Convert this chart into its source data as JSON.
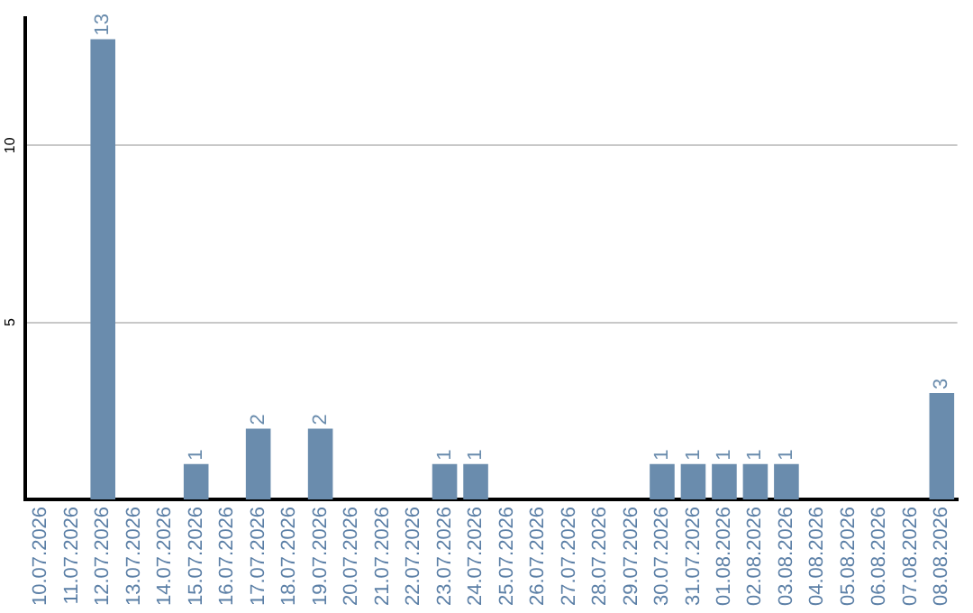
{
  "chart_data": {
    "type": "bar",
    "categories": [
      "10.07.2026",
      "11.07.2026",
      "12.07.2026",
      "13.07.2026",
      "14.07.2026",
      "15.07.2026",
      "16.07.2026",
      "17.07.2026",
      "18.07.2026",
      "19.07.2026",
      "20.07.2026",
      "21.07.2026",
      "22.07.2026",
      "23.07.2026",
      "24.07.2026",
      "25.07.2026",
      "26.07.2026",
      "27.07.2026",
      "28.07.2026",
      "29.07.2026",
      "30.07.2026",
      "31.07.2026",
      "01.08.2026",
      "02.08.2026",
      "03.08.2026",
      "04.08.2026",
      "05.08.2026",
      "06.08.2026",
      "07.08.2026",
      "08.08.2026"
    ],
    "values": [
      0,
      0,
      13,
      0,
      0,
      1,
      0,
      2,
      0,
      2,
      0,
      0,
      0,
      1,
      1,
      0,
      0,
      0,
      0,
      0,
      1,
      1,
      1,
      1,
      1,
      0,
      0,
      0,
      0,
      3
    ],
    "value_labels": [
      null,
      null,
      "13",
      null,
      null,
      "1",
      null,
      "2",
      null,
      "2",
      null,
      null,
      null,
      "1",
      "1",
      null,
      null,
      null,
      null,
      null,
      "1",
      "1",
      "1",
      "1",
      "1",
      null,
      null,
      null,
      null,
      "3"
    ],
    "color": "#6a8cad",
    "ylim": [
      0,
      13.6
    ],
    "yticks": [
      5,
      10
    ],
    "grid": "y",
    "legend": false
  }
}
